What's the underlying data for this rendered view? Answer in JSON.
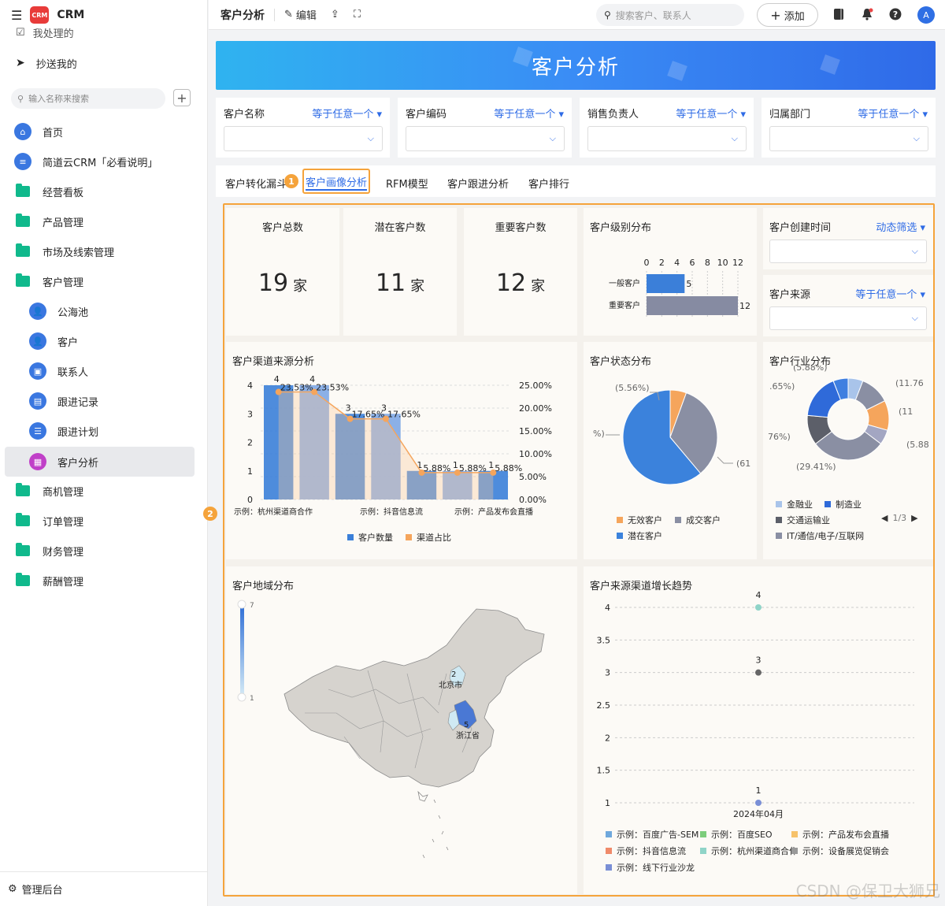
{
  "sidebar": {
    "app_name": "CRM",
    "logo_text": "CRM",
    "partial_item": "我处理的",
    "cc_item": "抄送我的",
    "search_placeholder": "输入名称来搜索",
    "items": [
      {
        "label": "首页"
      },
      {
        "label": "简道云CRM「必看说明」"
      },
      {
        "label": "经营看板"
      },
      {
        "label": "产品管理"
      },
      {
        "label": "市场及线索管理"
      },
      {
        "label": "客户管理"
      },
      {
        "label": "公海池"
      },
      {
        "label": "客户"
      },
      {
        "label": "联系人"
      },
      {
        "label": "跟进记录"
      },
      {
        "label": "跟进计划"
      },
      {
        "label": "客户分析"
      },
      {
        "label": "商机管理"
      },
      {
        "label": "订单管理"
      },
      {
        "label": "财务管理"
      },
      {
        "label": "薪酬管理"
      }
    ],
    "admin": "管理后台"
  },
  "topbar": {
    "title": "客户分析",
    "edit": "编辑",
    "search_placeholder": "搜索客户、联系人",
    "add": "添加",
    "avatar": "A"
  },
  "banner": {
    "title": "客户分析"
  },
  "filters": [
    {
      "label": "客户名称",
      "op": "等于任意一个"
    },
    {
      "label": "客户编码",
      "op": "等于任意一个"
    },
    {
      "label": "销售负责人",
      "op": "等于任意一个"
    },
    {
      "label": "归属部门",
      "op": "等于任意一个"
    }
  ],
  "tabs": [
    "客户转化漏斗",
    "客户画像分析",
    "RFM模型",
    "客户跟进分析",
    "客户排行"
  ],
  "badges": [
    "1",
    "2"
  ],
  "kpis": [
    {
      "title": "客户总数",
      "value": "19",
      "unit": "家"
    },
    {
      "title": "潜在客户数",
      "value": "11",
      "unit": "家"
    },
    {
      "title": "重要客户数",
      "value": "12",
      "unit": "家"
    }
  ],
  "level_chart": {
    "title": "客户级别分布",
    "ticks": [
      "0",
      "2",
      "4",
      "6",
      "8",
      "10",
      "12"
    ],
    "bars": [
      {
        "label": "一般客户",
        "value": 5
      },
      {
        "label": "重要客户",
        "value": 12
      }
    ]
  },
  "created_filter": {
    "label": "客户创建时间",
    "op": "动态筛选"
  },
  "source_filter": {
    "label": "客户来源",
    "op": "等于任意一个"
  },
  "channel_chart": {
    "title": "客户渠道来源分析",
    "y_ticks": [
      "0",
      "1",
      "2",
      "3",
      "4"
    ],
    "y2_ticks": [
      "0.00%",
      "5.00%",
      "10.00%",
      "15.00%",
      "20.00%",
      "25.00%"
    ],
    "x_labels": [
      "示例：杭州渠道商合作",
      "示例：抖音信息流",
      "示例：产品发布会直播"
    ],
    "bars": [
      4,
      4,
      3,
      3,
      1,
      1,
      1
    ],
    "pct_labels": [
      "23.53%",
      "23.53%",
      "17.65%",
      "17.65%",
      "5.88%",
      "5.88%",
      "5.88%"
    ],
    "pct": [
      23.53,
      23.53,
      17.65,
      17.65,
      5.88,
      5.88,
      5.88
    ],
    "legend": [
      "客户数量",
      "渠道占比"
    ]
  },
  "status_chart": {
    "title": "客户状态分布",
    "labels": [
      "(5.56%)",
      "%)",
      "(61"
    ],
    "slices": [
      {
        "name": "无效客户",
        "pct": 5.56,
        "color": "#f5a55c"
      },
      {
        "name": "成交客户",
        "pct": 33.33,
        "color": "#8a8fa3"
      },
      {
        "name": "潜在客户",
        "pct": 61.11,
        "color": "#3b82dc"
      }
    ],
    "legend": [
      "无效客户",
      "成交客户",
      "潜在客户"
    ]
  },
  "industry_chart": {
    "title": "客户行业分布",
    "labels": [
      "(5.88%)",
      "(11.76",
      "(11",
      "(5.88",
      "(29.41%)",
      "76%)",
      ".65%)"
    ],
    "legend": [
      "金融业",
      "制造业",
      "交通运输业",
      "IT/通信/电子/互联网"
    ],
    "page": "1/3"
  },
  "region_chart": {
    "title": "客户地域分布",
    "scale_max": "7",
    "scale_min": "1",
    "places": [
      {
        "name": "北京市",
        "value": "2"
      },
      {
        "name": "浙江省",
        "value": "5"
      }
    ]
  },
  "trend_chart": {
    "title": "客户来源渠道增长趋势",
    "y_ticks": [
      "1",
      "1.5",
      "2",
      "2.5",
      "3",
      "3.5",
      "4"
    ],
    "x_label": "2024年04月",
    "point_labels": [
      "4",
      "3",
      "1"
    ],
    "legend": [
      {
        "name": "示例：百度广告-SEM",
        "color": "#6fa8dc"
      },
      {
        "name": "示例：百度SEO",
        "color": "#7ccd7c"
      },
      {
        "name": "示例：产品发布会直播",
        "color": "#f6c26b"
      },
      {
        "name": "示例：抖音信息流",
        "color": "#f08a6a"
      },
      {
        "name": "示例：杭州渠道商合作",
        "color": "#8fd4c8"
      },
      {
        "name": "示例：设备展览促销会",
        "color": "#999999"
      },
      {
        "name": "示例：线下行业沙龙",
        "color": "#7a8fd6"
      }
    ]
  },
  "watermark": "CSDN @保卫大狮兄"
}
